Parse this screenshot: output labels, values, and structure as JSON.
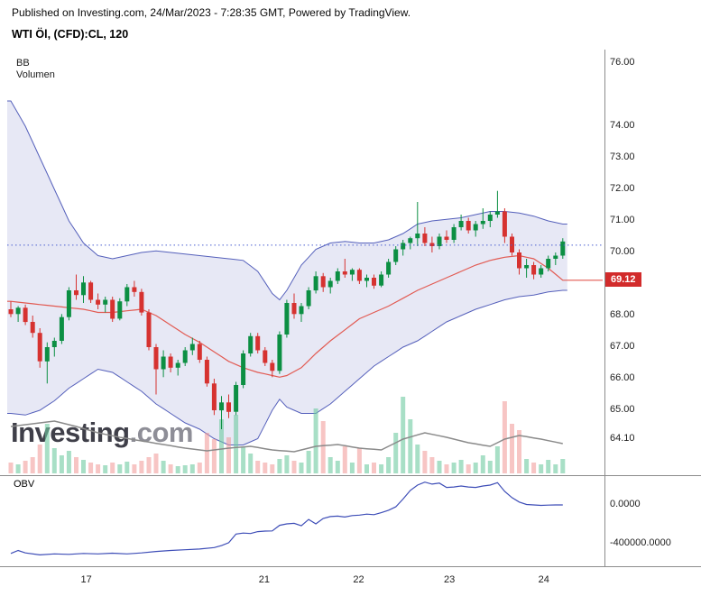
{
  "header": {
    "published_line": "Published on Investing.com, 24/Mar/2023 - 7:28:35 GMT, Powered by TradingView.",
    "instrument_title": "WTI Öl, (CFD):CL, 120"
  },
  "legend": {
    "bb_label": "BB",
    "volume_label": "Volumen"
  },
  "obv_panel": {
    "label": "OBV"
  },
  "watermark": {
    "main": "Investing",
    "suffix": ".com"
  },
  "colors": {
    "candle_up": "#0c8f43",
    "candle_down": "#d63230",
    "bb_line": "#5560bb",
    "bb_fill": "rgba(121,129,197,0.18)",
    "bb_mid": "#e25a52",
    "volume_up": "rgba(110,201,160,0.6)",
    "volume_down": "rgba(240,150,148,0.55)",
    "volume_ma": "#8a8a8a",
    "obv_line": "#3d4db7",
    "dotted_line": "#4a5fd0",
    "last_price_bg": "#d22b2b",
    "frame": "#8c8c8c",
    "axis_text": "#1c1c1c"
  },
  "chart_data": {
    "type": "candlestick",
    "title": "WTI Öl, (CFD):CL, 120",
    "interval_minutes": 120,
    "indicators": [
      "BB",
      "Volumen",
      "OBV"
    ],
    "dotted_line_price": 70.23,
    "price_axis": {
      "tick_labels": [
        {
          "text": "76.00",
          "price": 76.0
        },
        {
          "text": "74.00",
          "price": 74.0
        },
        {
          "text": "73.00",
          "price": 73.0
        },
        {
          "text": "72.00",
          "price": 72.0
        },
        {
          "text": "71.00",
          "price": 71.0
        },
        {
          "text": "70.00",
          "price": 70.0
        },
        {
          "text": "68.00",
          "price": 68.0
        },
        {
          "text": "67.00",
          "price": 67.0
        },
        {
          "text": "66.00",
          "price": 66.0
        },
        {
          "text": "65.00",
          "price": 65.0
        },
        {
          "text": "64.10",
          "price": 64.1
        }
      ],
      "last_value": {
        "text": "69.12",
        "price": 69.12
      }
    },
    "time_axis": {
      "tick_labels": [
        {
          "text": "17",
          "index": 10.5
        },
        {
          "text": "21",
          "index": 35
        },
        {
          "text": "22",
          "index": 48
        },
        {
          "text": "23",
          "index": 60.5
        },
        {
          "text": "24",
          "index": 73.5
        }
      ]
    },
    "candles": [
      [
        68.2,
        68.45,
        67.95,
        68.05
      ],
      [
        68.05,
        68.3,
        67.8,
        68.25
      ],
      [
        68.25,
        68.35,
        67.7,
        67.8
      ],
      [
        67.8,
        68.0,
        67.3,
        67.45
      ],
      [
        67.45,
        67.6,
        66.35,
        66.55
      ],
      [
        66.55,
        67.15,
        65.85,
        67.0
      ],
      [
        67.0,
        67.3,
        66.7,
        67.2
      ],
      [
        67.2,
        68.05,
        67.1,
        67.95
      ],
      [
        67.95,
        68.9,
        67.85,
        68.8
      ],
      [
        68.8,
        69.3,
        68.5,
        68.65
      ],
      [
        68.65,
        69.25,
        68.4,
        69.05
      ],
      [
        69.05,
        69.1,
        68.4,
        68.5
      ],
      [
        68.5,
        68.7,
        68.2,
        68.35
      ],
      [
        68.35,
        68.6,
        68.1,
        68.5
      ],
      [
        68.5,
        68.6,
        67.8,
        67.9
      ],
      [
        67.9,
        68.55,
        67.85,
        68.45
      ],
      [
        68.45,
        69.0,
        68.3,
        68.9
      ],
      [
        68.9,
        69.1,
        68.6,
        68.75
      ],
      [
        68.75,
        68.85,
        68.0,
        68.1
      ],
      [
        68.1,
        68.2,
        66.9,
        67.0
      ],
      [
        67.0,
        67.1,
        65.5,
        66.3
      ],
      [
        66.3,
        66.9,
        66.05,
        66.7
      ],
      [
        66.7,
        66.8,
        66.2,
        66.35
      ],
      [
        66.35,
        66.6,
        66.1,
        66.5
      ],
      [
        66.5,
        67.0,
        66.4,
        66.9
      ],
      [
        66.9,
        67.3,
        66.75,
        67.1
      ],
      [
        67.1,
        67.2,
        66.5,
        66.6
      ],
      [
        66.6,
        66.7,
        65.75,
        65.85
      ],
      [
        65.85,
        66.0,
        64.85,
        65.0
      ],
      [
        65.0,
        65.45,
        64.4,
        65.25
      ],
      [
        65.25,
        65.5,
        64.75,
        64.95
      ],
      [
        64.95,
        65.9,
        64.85,
        65.8
      ],
      [
        65.8,
        66.9,
        65.7,
        66.8
      ],
      [
        66.8,
        67.45,
        66.7,
        67.35
      ],
      [
        67.35,
        67.45,
        66.8,
        66.9
      ],
      [
        66.9,
        67.0,
        66.4,
        66.5
      ],
      [
        66.5,
        66.6,
        66.05,
        66.25
      ],
      [
        66.25,
        67.5,
        66.15,
        67.4
      ],
      [
        67.4,
        68.5,
        67.3,
        68.4
      ],
      [
        68.4,
        68.7,
        67.9,
        68.05
      ],
      [
        68.05,
        68.4,
        67.8,
        68.3
      ],
      [
        68.3,
        68.9,
        68.2,
        68.8
      ],
      [
        68.8,
        69.4,
        68.7,
        69.25
      ],
      [
        69.25,
        69.35,
        68.75,
        68.9
      ],
      [
        68.9,
        69.2,
        68.7,
        69.1
      ],
      [
        69.1,
        69.5,
        69.0,
        69.4
      ],
      [
        69.4,
        69.8,
        69.2,
        69.3
      ],
      [
        69.3,
        69.5,
        69.1,
        69.45
      ],
      [
        69.45,
        69.5,
        69.0,
        69.1
      ],
      [
        69.1,
        69.3,
        68.9,
        69.2
      ],
      [
        69.2,
        69.3,
        68.85,
        68.95
      ],
      [
        68.95,
        69.4,
        68.9,
        69.3
      ],
      [
        69.3,
        69.8,
        69.2,
        69.7
      ],
      [
        69.7,
        70.2,
        69.6,
        70.1
      ],
      [
        70.1,
        70.4,
        69.9,
        70.3
      ],
      [
        70.3,
        70.5,
        70.1,
        70.45
      ],
      [
        70.45,
        71.6,
        70.2,
        70.6
      ],
      [
        70.6,
        70.8,
        70.2,
        70.3
      ],
      [
        70.3,
        70.5,
        70.0,
        70.2
      ],
      [
        70.2,
        70.6,
        70.1,
        70.5
      ],
      [
        70.5,
        70.7,
        70.3,
        70.4
      ],
      [
        70.4,
        70.9,
        70.3,
        70.8
      ],
      [
        70.8,
        71.2,
        70.7,
        71.0
      ],
      [
        71.0,
        71.1,
        70.6,
        70.7
      ],
      [
        70.7,
        71.0,
        70.5,
        70.9
      ],
      [
        70.9,
        71.4,
        70.75,
        71.0
      ],
      [
        71.0,
        71.3,
        70.8,
        71.2
      ],
      [
        71.2,
        71.95,
        71.1,
        71.3
      ],
      [
        71.3,
        71.4,
        70.3,
        70.5
      ],
      [
        70.5,
        70.6,
        69.9,
        70.0
      ],
      [
        70.0,
        70.1,
        69.3,
        69.5
      ],
      [
        69.5,
        69.8,
        69.2,
        69.6
      ],
      [
        69.6,
        69.7,
        69.15,
        69.3
      ],
      [
        69.3,
        69.6,
        69.2,
        69.5
      ],
      [
        69.5,
        69.9,
        69.4,
        69.8
      ],
      [
        69.8,
        70.0,
        69.6,
        69.9
      ],
      [
        69.9,
        70.45,
        69.8,
        70.35
      ]
    ],
    "volume": [
      12,
      10,
      14,
      18,
      32,
      55,
      28,
      20,
      25,
      18,
      15,
      12,
      10,
      9,
      12,
      10,
      13,
      10,
      14,
      18,
      22,
      14,
      10,
      8,
      9,
      10,
      12,
      45,
      38,
      60,
      40,
      65,
      30,
      22,
      14,
      12,
      10,
      16,
      20,
      14,
      12,
      25,
      72,
      58,
      18,
      14,
      30,
      12,
      28,
      10,
      12,
      10,
      18,
      45,
      85,
      60,
      32,
      25,
      18,
      14,
      10,
      12,
      15,
      10,
      12,
      20,
      14,
      30,
      80,
      55,
      48,
      16,
      12,
      10,
      15,
      10,
      16
    ],
    "bollinger_keypoints": [
      [
        0,
        74.8,
        68.45,
        64.9
      ],
      [
        2,
        74.0,
        68.4,
        64.85
      ],
      [
        4,
        73.0,
        68.35,
        65.0
      ],
      [
        6,
        72.0,
        68.3,
        65.3
      ],
      [
        8,
        71.0,
        68.25,
        65.7
      ],
      [
        10,
        70.3,
        68.2,
        66.0
      ],
      [
        12,
        69.9,
        68.1,
        66.3
      ],
      [
        14,
        69.8,
        68.1,
        66.2
      ],
      [
        16,
        69.9,
        68.15,
        65.9
      ],
      [
        18,
        70.0,
        68.2,
        65.6
      ],
      [
        20,
        70.05,
        68.0,
        65.2
      ],
      [
        22,
        70.0,
        67.7,
        64.9
      ],
      [
        24,
        69.95,
        67.4,
        64.6
      ],
      [
        26,
        69.9,
        67.15,
        64.4
      ],
      [
        28,
        69.85,
        66.85,
        64.1
      ],
      [
        30,
        69.8,
        66.55,
        63.9
      ],
      [
        32,
        69.75,
        66.35,
        63.9
      ],
      [
        34,
        69.4,
        66.2,
        64.1
      ],
      [
        36,
        68.7,
        66.1,
        65.0
      ],
      [
        37,
        68.5,
        66.05,
        65.35
      ],
      [
        38,
        68.8,
        66.1,
        65.1
      ],
      [
        40,
        69.6,
        66.35,
        64.9
      ],
      [
        42,
        70.1,
        66.8,
        64.9
      ],
      [
        44,
        70.3,
        67.2,
        65.2
      ],
      [
        46,
        70.35,
        67.55,
        65.6
      ],
      [
        48,
        70.3,
        67.9,
        66.0
      ],
      [
        50,
        70.3,
        68.1,
        66.4
      ],
      [
        52,
        70.4,
        68.3,
        66.7
      ],
      [
        54,
        70.6,
        68.55,
        67.0
      ],
      [
        56,
        70.9,
        68.8,
        67.2
      ],
      [
        58,
        71.0,
        69.0,
        67.5
      ],
      [
        60,
        71.05,
        69.2,
        67.8
      ],
      [
        62,
        71.1,
        69.4,
        68.0
      ],
      [
        64,
        71.2,
        69.6,
        68.2
      ],
      [
        66,
        71.3,
        69.75,
        68.35
      ],
      [
        68,
        71.3,
        69.85,
        68.5
      ],
      [
        70,
        71.25,
        69.9,
        68.6
      ],
      [
        72,
        71.15,
        69.8,
        68.65
      ],
      [
        74,
        71.0,
        69.5,
        68.75
      ],
      [
        76,
        70.9,
        69.12,
        68.8
      ]
    ],
    "volume_ma_keypoints": [
      [
        0,
        52
      ],
      [
        3,
        55
      ],
      [
        6,
        58
      ],
      [
        9,
        52
      ],
      [
        12,
        45
      ],
      [
        15,
        40
      ],
      [
        18,
        36
      ],
      [
        21,
        32
      ],
      [
        24,
        28
      ],
      [
        27,
        25
      ],
      [
        30,
        28
      ],
      [
        33,
        30
      ],
      [
        36,
        26
      ],
      [
        39,
        24
      ],
      [
        42,
        30
      ],
      [
        45,
        32
      ],
      [
        48,
        28
      ],
      [
        51,
        26
      ],
      [
        54,
        38
      ],
      [
        57,
        45
      ],
      [
        60,
        40
      ],
      [
        63,
        34
      ],
      [
        66,
        30
      ],
      [
        68,
        38
      ],
      [
        70,
        42
      ],
      [
        73,
        38
      ],
      [
        76,
        33
      ]
    ],
    "obv": {
      "axis_tick_labels": [
        {
          "text": "0.0000",
          "value": 0
        },
        {
          "text": "-400000.0000",
          "value": -400000
        }
      ],
      "points": [
        [
          0,
          -500000
        ],
        [
          1,
          -470000
        ],
        [
          2,
          -495000
        ],
        [
          4,
          -515000
        ],
        [
          6,
          -505000
        ],
        [
          8,
          -510000
        ],
        [
          10,
          -500000
        ],
        [
          12,
          -505000
        ],
        [
          14,
          -498000
        ],
        [
          16,
          -505000
        ],
        [
          18,
          -495000
        ],
        [
          20,
          -480000
        ],
        [
          22,
          -470000
        ],
        [
          24,
          -462000
        ],
        [
          26,
          -455000
        ],
        [
          28,
          -440000
        ],
        [
          29,
          -420000
        ],
        [
          30,
          -390000
        ],
        [
          31,
          -300000
        ],
        [
          32,
          -290000
        ],
        [
          33,
          -295000
        ],
        [
          34,
          -275000
        ],
        [
          35,
          -270000
        ],
        [
          36,
          -268000
        ],
        [
          37,
          -210000
        ],
        [
          38,
          -195000
        ],
        [
          39,
          -190000
        ],
        [
          40,
          -215000
        ],
        [
          41,
          -150000
        ],
        [
          42,
          -195000
        ],
        [
          43,
          -140000
        ],
        [
          44,
          -120000
        ],
        [
          45,
          -115000
        ],
        [
          46,
          -125000
        ],
        [
          47,
          -110000
        ],
        [
          48,
          -105000
        ],
        [
          49,
          -95000
        ],
        [
          50,
          -100000
        ],
        [
          51,
          -80000
        ],
        [
          52,
          -55000
        ],
        [
          53,
          -20000
        ],
        [
          54,
          60000
        ],
        [
          55,
          150000
        ],
        [
          56,
          205000
        ],
        [
          57,
          235000
        ],
        [
          58,
          215000
        ],
        [
          59,
          225000
        ],
        [
          60,
          180000
        ],
        [
          61,
          185000
        ],
        [
          62,
          195000
        ],
        [
          63,
          185000
        ],
        [
          64,
          180000
        ],
        [
          65,
          195000
        ],
        [
          66,
          205000
        ],
        [
          67,
          230000
        ],
        [
          68,
          140000
        ],
        [
          69,
          75000
        ],
        [
          70,
          30000
        ],
        [
          71,
          5000
        ],
        [
          72,
          0
        ],
        [
          73,
          -5000
        ],
        [
          74,
          -2000
        ],
        [
          75,
          0
        ],
        [
          76,
          0
        ]
      ]
    }
  }
}
